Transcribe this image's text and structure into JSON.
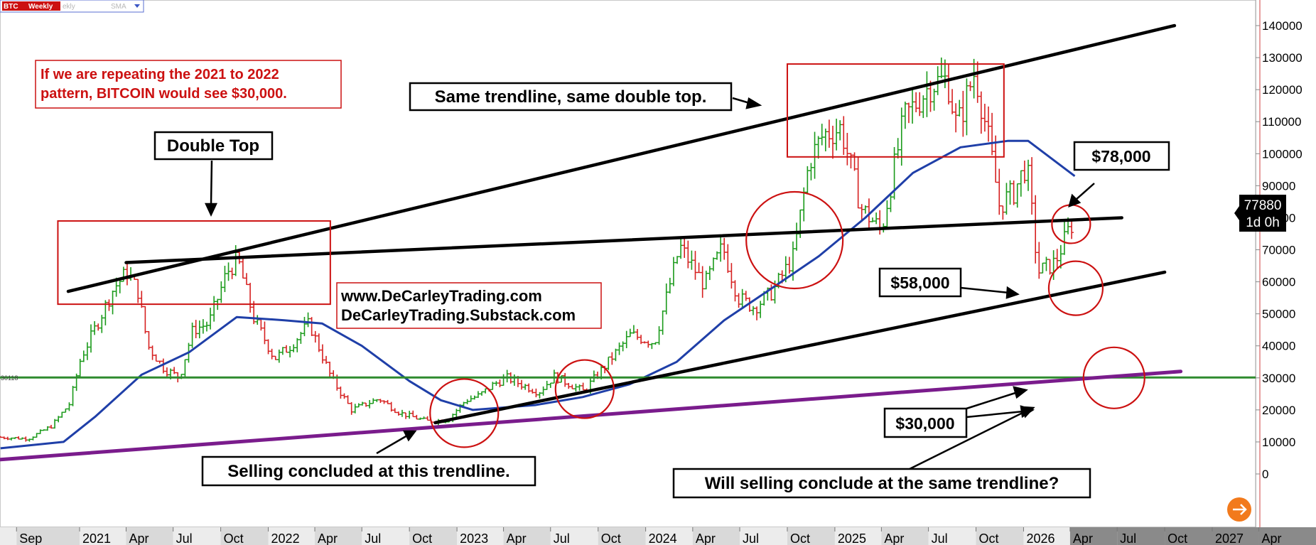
{
  "header": {
    "symbol": "BTC",
    "interval": "Weekly",
    "faded_text": "ekly",
    "indicator": "SMA",
    "dropdown_icon": "triangle-down-icon"
  },
  "colors": {
    "up_bar": "#1a9a1a",
    "down_bar": "#d62020",
    "sma": "#1f3fa8",
    "support_line": "#2e8b2e",
    "purple_trendline": "#7a1c8c",
    "annotation_red": "#cc1111",
    "accent_orange": "#f27a1c",
    "tag_bg": "#000000"
  },
  "notes": {
    "headline_line1": "If we are repeating the 2021 to 2022",
    "headline_line2": "pattern, BITCOIN would see $30,000.",
    "double_top": "Double Top",
    "same_trendline": "Same trendline, same double top.",
    "website_line1": "www.DeCarleyTrading.com",
    "website_line2": "DeCarleyTrading.Substack.com",
    "selling_concluded": "Selling concluded at this trendline.",
    "will_selling_conclude": "Will selling conclude at the same trendline?",
    "label_78000": "$78,000",
    "label_58000": "$58,000",
    "label_30000": "$30,000"
  },
  "price_tag": {
    "value": "77880",
    "countdown": "1d 0h"
  },
  "support_label": "30118",
  "chart_data": {
    "type": "bar",
    "title": "BTC Weekly",
    "interval": "Weekly",
    "y_axis": {
      "ticks": [
        0,
        10000,
        20000,
        30000,
        40000,
        50000,
        60000,
        70000,
        80000,
        90000,
        100000,
        110000,
        120000,
        130000,
        140000
      ],
      "tick_labels": [
        "0",
        "10000",
        "20000",
        "30000",
        "40000",
        "50000",
        "60000",
        "70000",
        "80000",
        "90000",
        "100000",
        "110000",
        "120000",
        "130000",
        "140000"
      ],
      "position": "right"
    },
    "x_axis": {
      "labels": [
        "Sep",
        "2021",
        "Apr",
        "Jul",
        "Oct",
        "2022",
        "Apr",
        "Jul",
        "Oct",
        "2023",
        "Apr",
        "Jul",
        "Oct",
        "2024",
        "Apr",
        "Jul",
        "Oct",
        "2025",
        "Apr",
        "Jul",
        "Oct",
        "2026",
        "Apr",
        "Jul",
        "Oct",
        "2027",
        "Apr"
      ],
      "label_dates": [
        "2020-09-01",
        "2021-01-01",
        "2021-04-01",
        "2021-07-01",
        "2021-10-01",
        "2022-01-01",
        "2022-04-01",
        "2022-07-01",
        "2022-10-01",
        "2023-01-01",
        "2023-04-01",
        "2023-07-01",
        "2023-10-01",
        "2024-01-01",
        "2024-04-01",
        "2024-07-01",
        "2024-10-01",
        "2025-01-01",
        "2025-04-01",
        "2025-07-01",
        "2025-10-01",
        "2026-01-01",
        "2026-04-01",
        "2026-07-01",
        "2026-10-01",
        "2027-01-01",
        "2027-04-01"
      ]
    },
    "price_path": [
      [
        "2020-08-01",
        11500
      ],
      [
        "2020-10-01",
        11000
      ],
      [
        "2020-11-15",
        15000
      ],
      [
        "2020-12-20",
        22000
      ],
      [
        "2021-01-10",
        36000
      ],
      [
        "2021-02-20",
        50000
      ],
      [
        "2021-03-15",
        58000
      ],
      [
        "2021-04-10",
        63000
      ],
      [
        "2021-05-01",
        57000
      ],
      [
        "2021-05-20",
        40000
      ],
      [
        "2021-06-20",
        33000
      ],
      [
        "2021-07-20",
        30000
      ],
      [
        "2021-08-15",
        45000
      ],
      [
        "2021-09-15",
        47000
      ],
      [
        "2021-10-20",
        63000
      ],
      [
        "2021-11-10",
        67000
      ],
      [
        "2021-12-10",
        49000
      ],
      [
        "2022-01-20",
        36000
      ],
      [
        "2022-02-20",
        40000
      ],
      [
        "2022-03-28",
        47000
      ],
      [
        "2022-05-10",
        30000
      ],
      [
        "2022-06-18",
        20000
      ],
      [
        "2022-08-10",
        23500
      ],
      [
        "2022-09-20",
        19000
      ],
      [
        "2022-11-10",
        16500
      ],
      [
        "2022-12-20",
        16800
      ],
      [
        "2023-01-25",
        23000
      ],
      [
        "2023-02-20",
        24500
      ],
      [
        "2023-03-20",
        28000
      ],
      [
        "2023-04-15",
        30000
      ],
      [
        "2023-06-15",
        25500
      ],
      [
        "2023-07-15",
        30500
      ],
      [
        "2023-09-10",
        25800
      ],
      [
        "2023-10-25",
        34500
      ],
      [
        "2023-12-10",
        43500
      ],
      [
        "2024-01-25",
        41000
      ],
      [
        "2024-03-14",
        71000
      ],
      [
        "2024-05-01",
        59000
      ],
      [
        "2024-06-05",
        71000
      ],
      [
        "2024-07-05",
        55000
      ],
      [
        "2024-08-05",
        52000
      ],
      [
        "2024-09-10",
        57000
      ],
      [
        "2024-10-20",
        68000
      ],
      [
        "2024-11-20",
        98000
      ],
      [
        "2024-12-17",
        106000
      ],
      [
        "2025-01-20",
        108000
      ],
      [
        "2025-02-28",
        83000
      ],
      [
        "2025-04-08",
        76000
      ],
      [
        "2025-05-22",
        111000
      ],
      [
        "2025-07-14",
        122000
      ],
      [
        "2025-08-14",
        123000
      ],
      [
        "2025-09-01",
        108000
      ],
      [
        "2025-10-06",
        126000
      ],
      [
        "2025-11-04",
        102000
      ],
      [
        "2025-11-22",
        84000
      ],
      [
        "2025-12-20",
        88000
      ],
      [
        "2026-01-14",
        97000
      ],
      [
        "2026-02-05",
        63000
      ],
      [
        "2026-03-10",
        66000
      ],
      [
        "2026-04-10",
        77880
      ]
    ],
    "sma": [
      [
        "2020-08-01",
        8000
      ],
      [
        "2020-12-01",
        10000
      ],
      [
        "2021-02-01",
        18000
      ],
      [
        "2021-05-01",
        31000
      ],
      [
        "2021-08-01",
        38000
      ],
      [
        "2021-11-01",
        49000
      ],
      [
        "2022-02-01",
        48000
      ],
      [
        "2022-04-15",
        47000
      ],
      [
        "2022-07-01",
        40000
      ],
      [
        "2022-10-01",
        29000
      ],
      [
        "2022-12-01",
        23000
      ],
      [
        "2023-02-01",
        20000
      ],
      [
        "2023-06-01",
        21500
      ],
      [
        "2023-09-01",
        24000
      ],
      [
        "2023-12-01",
        28000
      ],
      [
        "2024-03-01",
        35000
      ],
      [
        "2024-06-01",
        48000
      ],
      [
        "2024-09-01",
        58000
      ],
      [
        "2024-12-01",
        68000
      ],
      [
        "2025-03-01",
        80000
      ],
      [
        "2025-06-01",
        94000
      ],
      [
        "2025-09-01",
        102000
      ],
      [
        "2025-12-01",
        104000
      ],
      [
        "2026-01-10",
        104000
      ],
      [
        "2026-04-10",
        93000
      ]
    ],
    "support_level": 30118,
    "last_price": 77880,
    "trendlines": [
      {
        "name": "upper channel",
        "from": [
          "2020-12-10",
          57000
        ],
        "to": [
          "2026-10-20",
          140000
        ]
      },
      {
        "name": "neckline",
        "from": [
          "2021-04-01",
          66000
        ],
        "to": [
          "2026-07-10",
          80000
        ]
      },
      {
        "name": "lower channel",
        "from": [
          "2022-11-20",
          16000
        ],
        "to": [
          "2026-10-01",
          63000
        ]
      },
      {
        "name": "long-term support",
        "from": [
          "2020-08-01",
          4500
        ],
        "to": [
          "2026-11-01",
          32000
        ]
      }
    ],
    "boxes": [
      {
        "label": "2021 double top",
        "from": [
          "2020-11-20",
          53000
        ],
        "to": [
          "2022-05-01",
          79000
        ]
      },
      {
        "label": "2025 double top",
        "from": [
          "2024-10-01",
          99000
        ],
        "to": [
          "2025-11-24",
          128000
        ]
      }
    ],
    "circles": [
      {
        "at": [
          "2023-01-15",
          19000
        ]
      },
      {
        "at": [
          "2023-09-05",
          26500
        ]
      },
      {
        "at": [
          "2024-10-15",
          73000
        ]
      },
      {
        "at": [
          "2026-04-03",
          78000
        ]
      },
      {
        "at": [
          "2026-04-12",
          58000
        ]
      },
      {
        "at": [
          "2026-06-25",
          30000
        ]
      }
    ],
    "grid": false,
    "legend": "none"
  }
}
